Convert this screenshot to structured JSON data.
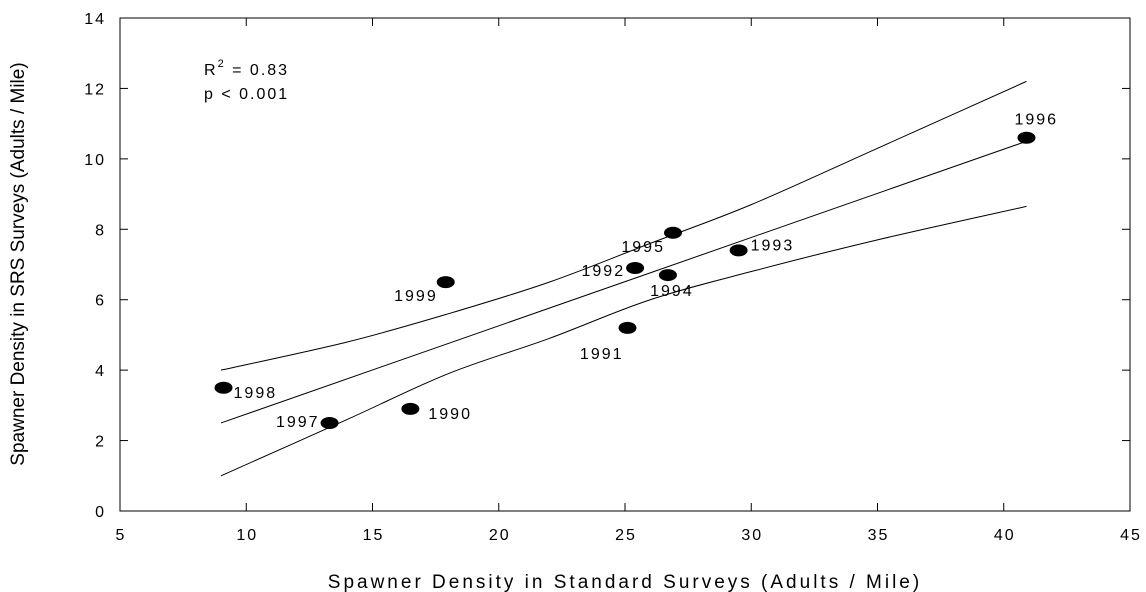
{
  "chart_data": {
    "type": "scatter",
    "xlabel": "Spawner Density in Standard Surveys (Adults / Mile)",
    "ylabel": "Spawner Density in SRS Surveys (Adults / Mile)",
    "xlim": [
      5,
      45
    ],
    "ylim": [
      0,
      14
    ],
    "xticks": [
      5,
      10,
      15,
      20,
      25,
      30,
      35,
      40,
      45
    ],
    "yticks": [
      0,
      2,
      4,
      6,
      8,
      10,
      12,
      14
    ],
    "grid": false,
    "annotations": {
      "r_squared": "R 2 = 0.83",
      "p_value": "p < 0.001"
    },
    "points": [
      {
        "year": "1990",
        "x": 16.5,
        "y": 2.9
      },
      {
        "year": "1991",
        "x": 25.1,
        "y": 5.2
      },
      {
        "year": "1992",
        "x": 25.4,
        "y": 6.9
      },
      {
        "year": "1993",
        "x": 29.5,
        "y": 7.4
      },
      {
        "year": "1994",
        "x": 26.7,
        "y": 6.7
      },
      {
        "year": "1995",
        "x": 26.9,
        "y": 7.9
      },
      {
        "year": "1996",
        "x": 40.9,
        "y": 10.6
      },
      {
        "year": "1997",
        "x": 13.3,
        "y": 2.5
      },
      {
        "year": "1998",
        "x": 9.1,
        "y": 3.5
      },
      {
        "year": "1999",
        "x": 17.9,
        "y": 6.5
      }
    ],
    "regression_line": {
      "x": [
        9.0,
        40.9
      ],
      "y": [
        2.5,
        10.5
      ]
    },
    "confidence_band": {
      "upper": [
        [
          9.0,
          4.0
        ],
        [
          14.0,
          4.8
        ],
        [
          18.0,
          5.6
        ],
        [
          22.0,
          6.5
        ],
        [
          26.0,
          7.6
        ],
        [
          30.0,
          8.7
        ],
        [
          35.0,
          10.3
        ],
        [
          40.9,
          12.2
        ]
      ],
      "lower": [
        [
          9.0,
          1.0
        ],
        [
          14.0,
          2.6
        ],
        [
          18.0,
          3.9
        ],
        [
          22.0,
          4.9
        ],
        [
          26.0,
          6.0
        ],
        [
          30.0,
          6.8
        ],
        [
          35.0,
          7.7
        ],
        [
          40.9,
          8.65
        ]
      ]
    }
  }
}
